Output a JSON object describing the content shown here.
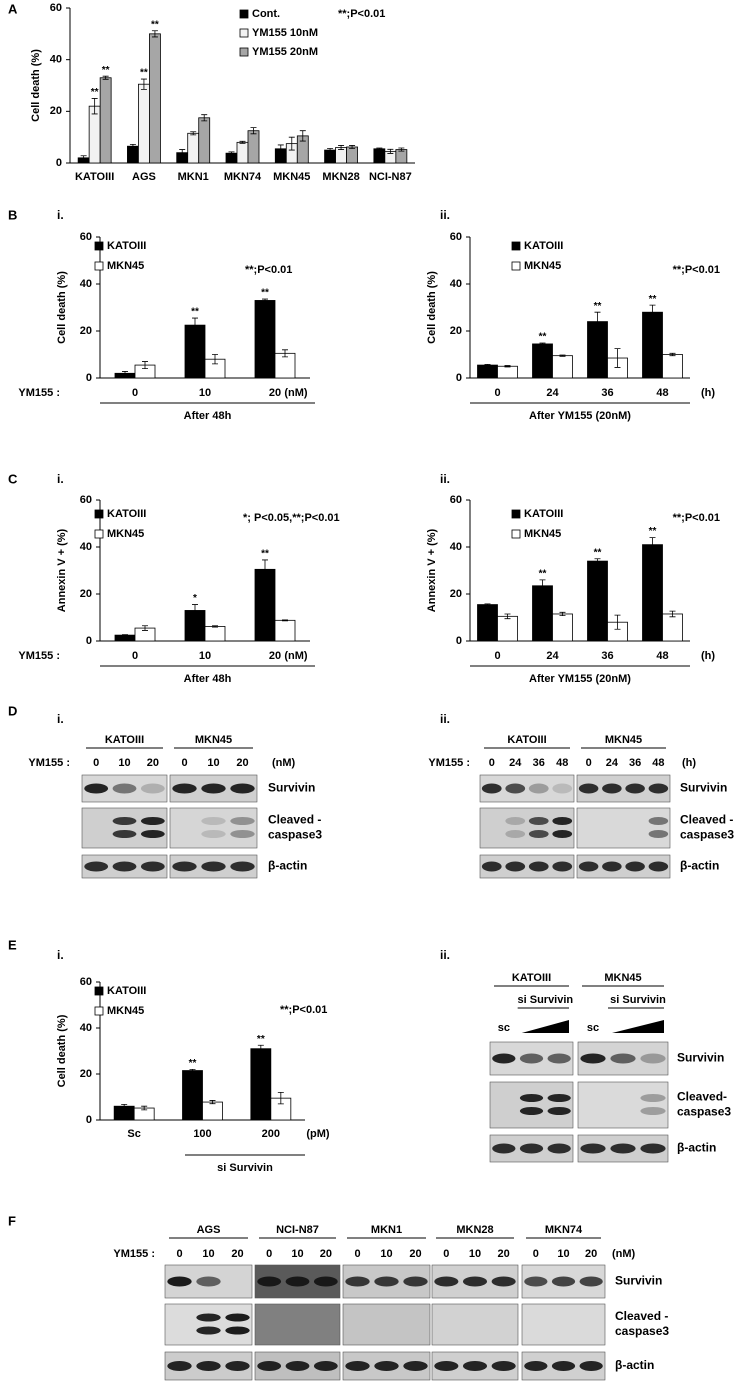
{
  "panel_labels": [
    "A",
    "B",
    "i.",
    "ii.",
    "C",
    "i.",
    "ii.",
    "D",
    "i.",
    "ii.",
    "E",
    "i.",
    "ii.",
    "F"
  ],
  "chart_data": [
    {
      "type": "bar",
      "y_label": "Cell death (%)",
      "categories": [
        "KATOIII",
        "AGS",
        "MKN1",
        "MKN74",
        "MKN45",
        "MKN28",
        "NCI-N87"
      ],
      "series": [
        {
          "name": "Cont.",
          "color": "#000000",
          "values": [
            2,
            6.5,
            4,
            3.8,
            5.5,
            5,
            5.5
          ],
          "errors": [
            0.8,
            0.7,
            1.2,
            0.5,
            1.5,
            0.6,
            0.3
          ]
        },
        {
          "name": "YM155 10nM",
          "color": "#f2f2f2",
          "values": [
            22,
            30.5,
            11.5,
            8,
            7.5,
            6,
            4.5
          ],
          "errors": [
            3,
            2,
            0.6,
            0.4,
            2.5,
            0.8,
            0.8
          ],
          "significance": [
            "**",
            "**",
            null,
            null,
            null,
            null,
            null
          ]
        },
        {
          "name": "YM155 20nM",
          "color": "#a6a6a6",
          "values": [
            33,
            50,
            17.5,
            12.5,
            10.5,
            6.2,
            5.2
          ],
          "errors": [
            0.6,
            1.2,
            1.2,
            1.2,
            2,
            0.6,
            0.6
          ],
          "significance": [
            "**",
            "**",
            null,
            null,
            null,
            null,
            null
          ]
        }
      ],
      "ylim": [
        0,
        60
      ],
      "yticks": [
        0,
        20,
        40,
        60
      ],
      "annotation": "**;P<0.01"
    },
    {
      "type": "bar",
      "y_label": "Cell death (%)",
      "x_row_label": "YM155 :",
      "categories": [
        "0",
        "10",
        "20"
      ],
      "x_unit": "(nM)",
      "x_caption": "After 48h",
      "series": [
        {
          "name": "KATOIII",
          "color": "#000000",
          "values": [
            2,
            22.5,
            33
          ],
          "errors": [
            0.8,
            3,
            0.6
          ],
          "significance": [
            null,
            "**",
            "**"
          ]
        },
        {
          "name": "MKN45",
          "color": "#ffffff",
          "values": [
            5.5,
            8,
            10.5
          ],
          "errors": [
            1.5,
            2,
            1.5
          ]
        }
      ],
      "ylim": [
        0,
        60
      ],
      "yticks": [
        0,
        20,
        40,
        60
      ],
      "annotation": "**;P<0.01"
    },
    {
      "type": "bar",
      "y_label": "Cell death (%)",
      "categories": [
        "0",
        "24",
        "36",
        "48"
      ],
      "x_unit": "(h)",
      "x_caption": "After YM155 (20nM)",
      "series": [
        {
          "name": "KATOIII",
          "color": "#000000",
          "values": [
            5.5,
            14.5,
            24,
            28
          ],
          "errors": [
            0.3,
            0.4,
            4,
            3
          ],
          "significance": [
            null,
            "**",
            "**",
            "**"
          ]
        },
        {
          "name": "MKN45",
          "color": "#ffffff",
          "values": [
            5,
            9.5,
            8.5,
            10
          ],
          "errors": [
            0.3,
            0.3,
            4,
            0.5
          ]
        }
      ],
      "ylim": [
        0,
        60
      ],
      "yticks": [
        0,
        20,
        40,
        60
      ],
      "annotation": "**;P<0.01"
    },
    {
      "type": "bar",
      "y_label": "Annexin V + (%)",
      "x_row_label": "YM155 :",
      "categories": [
        "0",
        "10",
        "20"
      ],
      "x_unit": "(nM)",
      "x_caption": "After 48h",
      "series": [
        {
          "name": "KATOIII",
          "color": "#000000",
          "values": [
            2.5,
            13,
            30.5
          ],
          "errors": [
            0.2,
            2.5,
            4
          ],
          "significance": [
            null,
            "*",
            "**"
          ]
        },
        {
          "name": "MKN45",
          "color": "#ffffff",
          "values": [
            5.5,
            6.2,
            8.8
          ],
          "errors": [
            1,
            0.3,
            0.2
          ]
        }
      ],
      "ylim": [
        0,
        60
      ],
      "yticks": [
        0,
        20,
        40,
        60
      ],
      "annotation": "*; P<0.05,**;P<0.01"
    },
    {
      "type": "bar",
      "y_label": "Annexin V + (%)",
      "categories": [
        "0",
        "24",
        "36",
        "48"
      ],
      "x_unit": "(h)",
      "x_caption": "After YM155 (20nM)",
      "series": [
        {
          "name": "KATOIII",
          "color": "#000000",
          "values": [
            15.5,
            23.5,
            34,
            41
          ],
          "errors": [
            0.3,
            2.5,
            1,
            3
          ],
          "significance": [
            null,
            "**",
            "**",
            "**"
          ]
        },
        {
          "name": "MKN45",
          "color": "#ffffff",
          "values": [
            10.5,
            11.5,
            8,
            11.5
          ],
          "errors": [
            1,
            0.7,
            3,
            1.2
          ]
        }
      ],
      "ylim": [
        0,
        60
      ],
      "yticks": [
        0,
        20,
        40,
        60
      ],
      "annotation": "**;P<0.01"
    },
    {
      "type": "bar",
      "y_label": "Cell death (%)",
      "categories": [
        "Sc",
        "100",
        "200"
      ],
      "x_unit": "(pM)",
      "x_caption": "si Survivin",
      "series": [
        {
          "name": "KATOIII",
          "color": "#000000",
          "values": [
            6,
            21.5,
            31
          ],
          "errors": [
            0.8,
            0.5,
            1.5
          ],
          "significance": [
            null,
            "**",
            "**"
          ]
        },
        {
          "name": "MKN45",
          "color": "#ffffff",
          "values": [
            5.2,
            7.8,
            9.5
          ],
          "errors": [
            0.8,
            0.7,
            2.5
          ]
        }
      ],
      "ylim": [
        0,
        60
      ],
      "yticks": [
        0,
        20,
        40,
        60
      ],
      "annotation": "**;P<0.01"
    }
  ],
  "blots": [
    {
      "group_labels": [
        "KATOIII",
        "MKN45"
      ],
      "lane_row_label": "YM155 :",
      "lanes": [
        [
          "0",
          "10",
          "20"
        ],
        [
          "0",
          "10",
          "20"
        ]
      ],
      "lane_unit": "(nM)",
      "rows": [
        [
          "Survivin"
        ],
        [
          "Cleaved -",
          "caspase3"
        ],
        [
          "β-actin"
        ]
      ]
    },
    {
      "group_labels": [
        "KATOIII",
        "MKN45"
      ],
      "lane_row_label": "YM155 :",
      "lanes": [
        [
          "0",
          "24",
          "36",
          "48"
        ],
        [
          "0",
          "24",
          "36",
          "48"
        ]
      ],
      "lane_unit": "(h)",
      "rows": [
        [
          "Survivin"
        ],
        [
          "Cleaved -",
          "caspase3"
        ],
        [
          "β-actin"
        ]
      ]
    },
    {
      "group_labels": [
        "KATOIII",
        "MKN45"
      ],
      "sub_labels": [
        "si Survivin",
        "si Survivin"
      ],
      "lanes": [
        [
          "sc"
        ],
        [
          "sc"
        ]
      ],
      "rows": [
        [
          "Survivin"
        ],
        [
          "Cleaved-",
          "caspase3"
        ],
        [
          "β-actin"
        ]
      ]
    },
    {
      "group_labels": [
        "AGS",
        "NCI-N87",
        "MKN1",
        "MKN28",
        "MKN74"
      ],
      "lane_row_label": "YM155 :",
      "lanes": [
        [
          "0",
          "10",
          "20"
        ],
        [
          "0",
          "10",
          "20"
        ],
        [
          "0",
          "10",
          "20"
        ],
        [
          "0",
          "10",
          "20"
        ],
        [
          "0",
          "10",
          "20"
        ]
      ],
      "lane_unit": "(nM)",
      "rows": [
        [
          "Survivin"
        ],
        [
          "Cleaved -",
          "caspase3"
        ],
        [
          "β-actin"
        ]
      ]
    }
  ]
}
